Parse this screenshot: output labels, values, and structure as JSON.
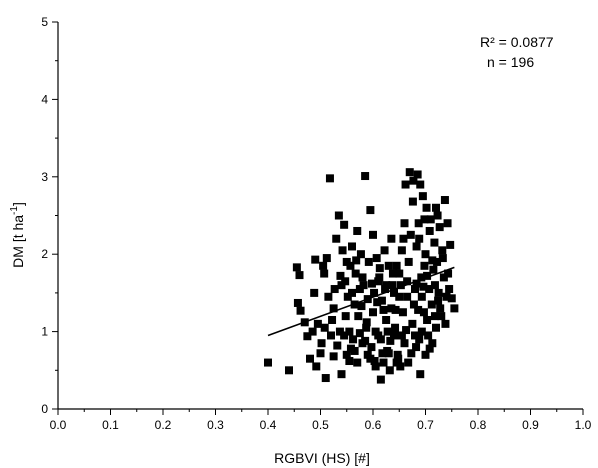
{
  "chart_data": {
    "type": "scatter",
    "xlabel": "RGBVI (HS) [#]",
    "ylabel_main": "DM [t ha",
    "ylabel_sup": "-1",
    "ylabel_end": "]",
    "xlim": [
      0.0,
      1.0
    ],
    "ylim": [
      0,
      5
    ],
    "x_ticks": [
      "0.0",
      "0.1",
      "0.2",
      "0.3",
      "0.4",
      "0.5",
      "0.6",
      "0.7",
      "0.8",
      "0.9",
      "1.0"
    ],
    "y_ticks": [
      "0",
      "1",
      "2",
      "3",
      "4",
      "5"
    ],
    "annotations": {
      "r2": "R² = 0.0877",
      "n": "n = 196"
    },
    "grid": false,
    "trendline": {
      "x": [
        0.4,
        0.755
      ],
      "y": [
        0.95,
        1.83
      ]
    },
    "points": [
      [
        0.4,
        0.6
      ],
      [
        0.44,
        0.5
      ],
      [
        0.455,
        1.83
      ],
      [
        0.457,
        1.37
      ],
      [
        0.46,
        1.73
      ],
      [
        0.462,
        1.27
      ],
      [
        0.47,
        1.12
      ],
      [
        0.475,
        0.94
      ],
      [
        0.48,
        0.65
      ],
      [
        0.485,
        1.0
      ],
      [
        0.488,
        1.5
      ],
      [
        0.49,
        1.93
      ],
      [
        0.492,
        0.55
      ],
      [
        0.495,
        1.1
      ],
      [
        0.5,
        0.72
      ],
      [
        0.502,
        0.85
      ],
      [
        0.505,
        1.85
      ],
      [
        0.507,
        1.75
      ],
      [
        0.51,
        0.4
      ],
      [
        0.512,
        1.95
      ],
      [
        0.515,
        1.45
      ],
      [
        0.518,
        2.98
      ],
      [
        0.52,
        0.95
      ],
      [
        0.522,
        1.15
      ],
      [
        0.525,
        1.3
      ],
      [
        0.527,
        1.55
      ],
      [
        0.53,
        2.2
      ],
      [
        0.532,
        0.82
      ],
      [
        0.535,
        2.5
      ],
      [
        0.537,
        1.0
      ],
      [
        0.54,
        0.45
      ],
      [
        0.542,
        2.05
      ],
      [
        0.545,
        2.38
      ],
      [
        0.547,
        1.65
      ],
      [
        0.55,
        0.7
      ],
      [
        0.552,
        1.45
      ],
      [
        0.555,
        1.0
      ],
      [
        0.557,
        1.85
      ],
      [
        0.56,
        2.1
      ],
      [
        0.562,
        0.9
      ],
      [
        0.565,
        1.35
      ],
      [
        0.567,
        1.75
      ],
      [
        0.57,
        0.6
      ],
      [
        0.572,
        1.2
      ],
      [
        0.575,
        1.55
      ],
      [
        0.577,
        2.0
      ],
      [
        0.58,
        0.85
      ],
      [
        0.582,
        1.6
      ],
      [
        0.585,
        3.01
      ],
      [
        0.587,
        1.05
      ],
      [
        0.59,
        0.7
      ],
      [
        0.592,
        1.9
      ],
      [
        0.595,
        2.57
      ],
      [
        0.597,
        0.8
      ],
      [
        0.6,
        1.25
      ],
      [
        0.602,
        1.5
      ],
      [
        0.605,
        0.55
      ],
      [
        0.607,
        1.95
      ],
      [
        0.61,
        0.95
      ],
      [
        0.612,
        1.7
      ],
      [
        0.615,
        0.38
      ],
      [
        0.617,
        1.4
      ],
      [
        0.62,
        0.6
      ],
      [
        0.622,
        2.05
      ],
      [
        0.625,
        1.15
      ],
      [
        0.627,
        0.75
      ],
      [
        0.63,
        1.85
      ],
      [
        0.632,
        0.5
      ],
      [
        0.635,
        1.3
      ],
      [
        0.637,
        1.6
      ],
      [
        0.64,
        0.95
      ],
      [
        0.642,
        1.05
      ],
      [
        0.645,
        1.85
      ],
      [
        0.647,
        0.7
      ],
      [
        0.65,
        1.45
      ],
      [
        0.652,
        0.55
      ],
      [
        0.655,
        2.05
      ],
      [
        0.657,
        1.25
      ],
      [
        0.66,
        0.85
      ],
      [
        0.662,
        2.9
      ],
      [
        0.665,
        1.65
      ],
      [
        0.667,
        0.6
      ],
      [
        0.67,
        3.06
      ],
      [
        0.672,
        2.25
      ],
      [
        0.675,
        1.1
      ],
      [
        0.677,
        2.95
      ],
      [
        0.68,
        1.55
      ],
      [
        0.682,
        0.8
      ],
      [
        0.685,
        3.03
      ],
      [
        0.687,
        2.4
      ],
      [
        0.69,
        0.45
      ],
      [
        0.692,
        1.7
      ],
      [
        0.695,
        2.75
      ],
      [
        0.697,
        1.25
      ],
      [
        0.7,
        2.0
      ],
      [
        0.702,
        2.6
      ],
      [
        0.705,
        0.95
      ],
      [
        0.707,
        1.55
      ],
      [
        0.71,
        2.45
      ],
      [
        0.712,
        1.35
      ],
      [
        0.715,
        1.8
      ],
      [
        0.717,
        2.15
      ],
      [
        0.72,
        1.05
      ],
      [
        0.722,
        1.9
      ],
      [
        0.725,
        1.5
      ],
      [
        0.727,
        2.35
      ],
      [
        0.73,
        1.2
      ],
      [
        0.732,
        2.05
      ],
      [
        0.735,
        1.7
      ],
      [
        0.737,
        2.7
      ],
      [
        0.74,
        1.45
      ],
      [
        0.742,
        2.4
      ],
      [
        0.745,
        1.55
      ],
      [
        0.747,
        2.12
      ],
      [
        0.75,
        1.43
      ],
      [
        0.755,
        1.3
      ],
      [
        0.508,
        1.05
      ],
      [
        0.525,
        0.68
      ],
      [
        0.538,
        1.72
      ],
      [
        0.548,
        1.2
      ],
      [
        0.558,
        0.78
      ],
      [
        0.568,
        1.92
      ],
      [
        0.578,
        1.33
      ],
      [
        0.588,
        1.12
      ],
      [
        0.598,
        1.62
      ],
      [
        0.603,
        0.62
      ],
      [
        0.608,
        1.38
      ],
      [
        0.613,
        1.82
      ],
      [
        0.618,
        0.72
      ],
      [
        0.623,
        1.55
      ],
      [
        0.628,
        1.0
      ],
      [
        0.633,
        0.88
      ],
      [
        0.638,
        1.75
      ],
      [
        0.643,
        1.28
      ],
      [
        0.648,
        0.65
      ],
      [
        0.653,
        1.6
      ],
      [
        0.658,
        2.2
      ],
      [
        0.663,
        1.02
      ],
      [
        0.668,
        1.9
      ],
      [
        0.673,
        0.72
      ],
      [
        0.678,
        1.35
      ],
      [
        0.683,
        2.1
      ],
      [
        0.688,
        0.9
      ],
      [
        0.693,
        1.45
      ],
      [
        0.698,
        1.85
      ],
      [
        0.703,
        1.15
      ],
      [
        0.708,
        2.3
      ],
      [
        0.713,
        0.85
      ],
      [
        0.718,
        1.6
      ],
      [
        0.723,
        2.5
      ],
      [
        0.728,
        1.3
      ],
      [
        0.733,
        1.95
      ],
      [
        0.738,
        1.1
      ],
      [
        0.743,
        1.75
      ],
      [
        0.683,
        1.62
      ],
      [
        0.688,
        2.2
      ],
      [
        0.693,
        1.0
      ],
      [
        0.698,
        2.45
      ],
      [
        0.703,
        1.72
      ],
      [
        0.708,
        0.78
      ],
      [
        0.713,
        1.92
      ],
      [
        0.718,
        1.2
      ],
      [
        0.72,
        2.6
      ],
      [
        0.724,
        1.4
      ],
      [
        0.676,
        2.68
      ],
      [
        0.68,
        0.95
      ],
      [
        0.686,
        1.28
      ],
      [
        0.69,
        2.9
      ],
      [
        0.696,
        1.58
      ],
      [
        0.7,
        0.7
      ],
      [
        0.665,
        1.45
      ],
      [
        0.66,
        2.4
      ],
      [
        0.655,
        0.95
      ],
      [
        0.65,
        1.75
      ],
      [
        0.645,
        0.6
      ],
      [
        0.64,
        1.5
      ],
      [
        0.635,
        2.2
      ],
      [
        0.63,
        0.72
      ],
      [
        0.625,
        1.6
      ],
      [
        0.62,
        1.28
      ],
      [
        0.615,
        0.9
      ],
      [
        0.61,
        1.65
      ],
      [
        0.605,
        1.0
      ],
      [
        0.6,
        2.25
      ],
      [
        0.595,
        0.65
      ],
      [
        0.59,
        1.42
      ],
      [
        0.585,
        0.88
      ],
      [
        0.58,
        1.7
      ],
      [
        0.575,
        0.98
      ],
      [
        0.57,
        2.3
      ],
      [
        0.565,
        0.75
      ],
      [
        0.56,
        1.5
      ],
      [
        0.555,
        0.62
      ],
      [
        0.55,
        1.9
      ],
      [
        0.545,
        0.95
      ],
      [
        0.54,
        1.6
      ]
    ]
  }
}
